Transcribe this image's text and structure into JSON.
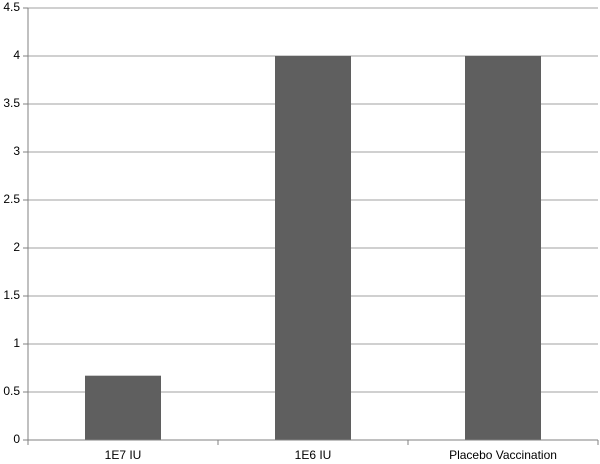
{
  "chart_data": {
    "type": "bar",
    "categories": [
      "1E7 IU",
      "1E6 IU",
      "Placebo Vaccination"
    ],
    "values": [
      0.67,
      4,
      4
    ],
    "color": "#5f5f5f",
    "ylim": [
      0,
      4.5
    ],
    "yticks": [
      0,
      0.5,
      1,
      1.5,
      2,
      2.5,
      3,
      3.5,
      4,
      4.5
    ],
    "grid": true
  }
}
